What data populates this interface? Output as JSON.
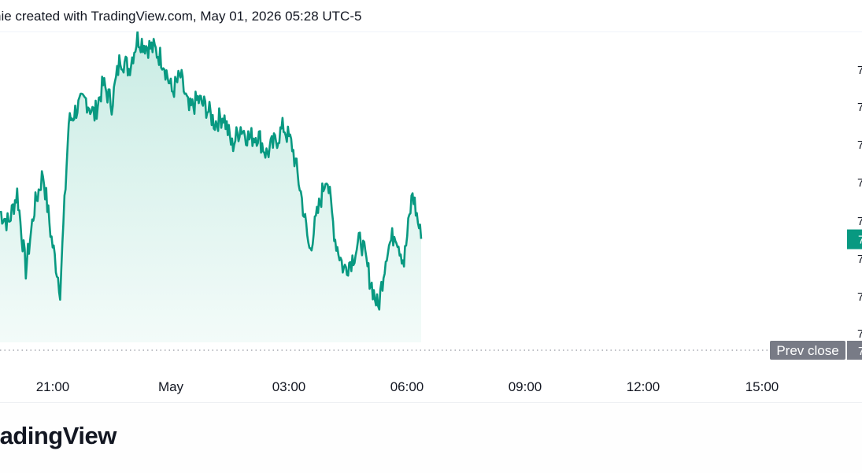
{
  "header": {
    "caption": "nie created with TradingView.com, May 01, 2026 05:28 UTC-5"
  },
  "footer": {
    "brand": "radingView"
  },
  "colors": {
    "line": "#089981",
    "area_top": "#c9ece4",
    "area_bottom": "#f3fbf9",
    "prev_close_line": "#9598a1",
    "prev_close_badge": "#787b86",
    "price_badge": "#089981"
  },
  "chart_data": {
    "type": "area",
    "x_ticks": [
      "21:00",
      "May",
      "03:00",
      "06:00",
      "09:00",
      "12:00",
      "15:00"
    ],
    "y_tick_labels": [
      "7",
      "7",
      "7",
      "7",
      "7",
      "7",
      "7",
      "7"
    ],
    "prev_close_label": "Prev close",
    "prev_close_value": "7",
    "current_price_label": "7",
    "grid": false,
    "series": [
      {
        "values": [
          55,
          52,
          60,
          40,
          56,
          65,
          48,
          35,
          78,
          82,
          84,
          80,
          88,
          83,
          95,
          92,
          100,
          98,
          97,
          94,
          86,
          90,
          81,
          84,
          82,
          78,
          80,
          72,
          77,
          74,
          75,
          70,
          73,
          77,
          72,
          60,
          45,
          55,
          65,
          48,
          40,
          43,
          48,
          38,
          30,
          45,
          50,
          42,
          60,
          48
        ]
      }
    ]
  }
}
